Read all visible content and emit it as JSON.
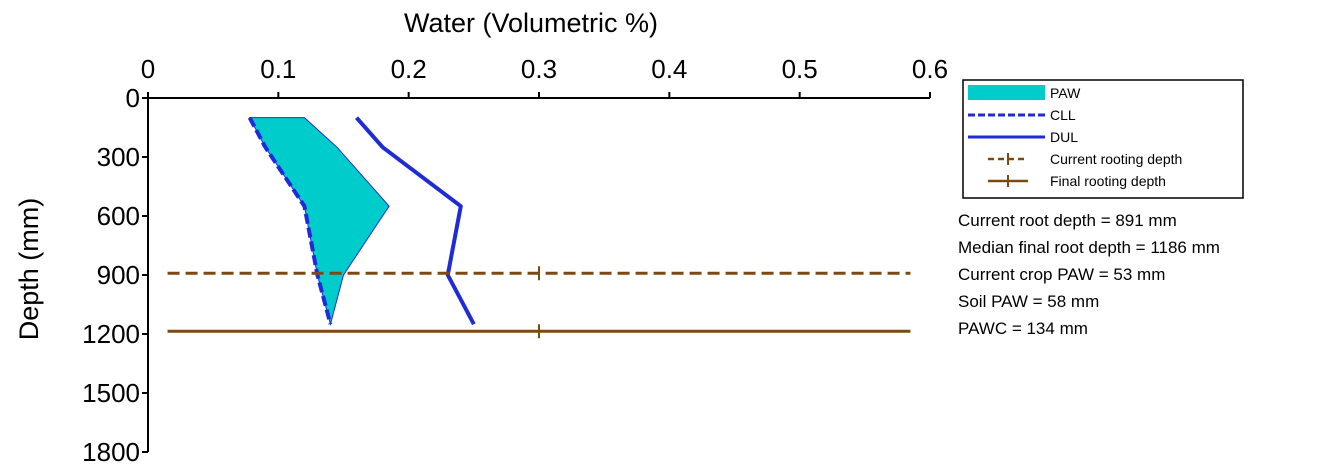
{
  "chart_data": {
    "type": "line",
    "xlabel": "Water (Volumetric %)",
    "ylabel": "Depth (mm)",
    "xlim": [
      0,
      0.6
    ],
    "ylim": [
      0,
      1800
    ],
    "y_inverted": true,
    "x_axis_position": "top",
    "x_ticks": [
      "0",
      "0.1",
      "0.2",
      "0.3",
      "0.4",
      "0.5",
      "0.6"
    ],
    "y_ticks": [
      "0",
      "300",
      "600",
      "900",
      "1200",
      "1500",
      "1800"
    ],
    "series": [
      {
        "name": "CLL",
        "style": "dashed",
        "color": "#1f2bd6",
        "points": [
          [
            0.078,
            100
          ],
          [
            0.09,
            250
          ],
          [
            0.12,
            550
          ],
          [
            0.13,
            900
          ],
          [
            0.14,
            1150
          ]
        ]
      },
      {
        "name": "DUL",
        "style": "solid",
        "color": "#1f2bd6",
        "points": [
          [
            0.16,
            100
          ],
          [
            0.18,
            250
          ],
          [
            0.24,
            550
          ],
          [
            0.23,
            900
          ],
          [
            0.25,
            1150
          ]
        ]
      }
    ],
    "paw_area": {
      "name": "PAW",
      "color": "#00cccc",
      "upper": [
        [
          0.12,
          100
        ],
        [
          0.145,
          250
        ],
        [
          0.185,
          550
        ],
        [
          0.15,
          900
        ],
        [
          0.14,
          1150
        ]
      ]
    },
    "rooting_lines": [
      {
        "name": "Current rooting depth",
        "depth": 891,
        "style": "dashed",
        "color": "#7b4a12",
        "marker_x": 0.3,
        "x_range": [
          0.015,
          0.585
        ]
      },
      {
        "name": "Final rooting depth",
        "depth": 1186,
        "style": "solid",
        "color": "#7b4a12",
        "marker_x": 0.3,
        "x_range": [
          0.015,
          0.585
        ]
      }
    ],
    "legend": {
      "position": "right",
      "entries": [
        "PAW",
        "CLL",
        "DUL",
        "Current rooting depth",
        "Final rooting depth"
      ]
    },
    "stats": [
      "Current root depth = 891 mm",
      "Median final root depth = 1186 mm",
      "Current crop PAW = 53 mm",
      "Soil PAW = 58 mm",
      "PAWC = 134 mm"
    ]
  }
}
